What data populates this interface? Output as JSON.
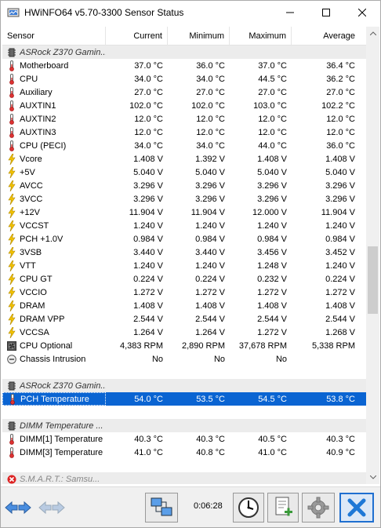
{
  "window": {
    "title": "HWiNFO64 v5.70-3300 Sensor Status"
  },
  "columns": {
    "sensor": "Sensor",
    "current": "Current",
    "minimum": "Minimum",
    "maximum": "Maximum",
    "average": "Average"
  },
  "rows": [
    {
      "type": "group",
      "icon": "chip-icon",
      "name": "ASRock Z370 Gamin..."
    },
    {
      "icon": "thermometer-icon",
      "name": "Motherboard",
      "current": "37.0 °C",
      "minimum": "36.0 °C",
      "maximum": "37.0 °C",
      "average": "36.4 °C"
    },
    {
      "icon": "thermometer-icon",
      "name": "CPU",
      "current": "34.0 °C",
      "minimum": "34.0 °C",
      "maximum": "44.5 °C",
      "average": "36.2 °C"
    },
    {
      "icon": "thermometer-icon",
      "name": "Auxiliary",
      "current": "27.0 °C",
      "minimum": "27.0 °C",
      "maximum": "27.0 °C",
      "average": "27.0 °C"
    },
    {
      "icon": "thermometer-icon",
      "name": "AUXTIN1",
      "current": "102.0 °C",
      "minimum": "102.0 °C",
      "maximum": "103.0 °C",
      "average": "102.2 °C"
    },
    {
      "icon": "thermometer-icon",
      "name": "AUXTIN2",
      "current": "12.0 °C",
      "minimum": "12.0 °C",
      "maximum": "12.0 °C",
      "average": "12.0 °C"
    },
    {
      "icon": "thermometer-icon",
      "name": "AUXTIN3",
      "current": "12.0 °C",
      "minimum": "12.0 °C",
      "maximum": "12.0 °C",
      "average": "12.0 °C"
    },
    {
      "icon": "thermometer-icon",
      "name": "CPU (PECI)",
      "current": "34.0 °C",
      "minimum": "34.0 °C",
      "maximum": "44.0 °C",
      "average": "36.0 °C"
    },
    {
      "icon": "voltage-icon",
      "name": "Vcore",
      "current": "1.408 V",
      "minimum": "1.392 V",
      "maximum": "1.408 V",
      "average": "1.408 V"
    },
    {
      "icon": "voltage-icon",
      "name": "+5V",
      "current": "5.040 V",
      "minimum": "5.040 V",
      "maximum": "5.040 V",
      "average": "5.040 V"
    },
    {
      "icon": "voltage-icon",
      "name": "AVCC",
      "current": "3.296 V",
      "minimum": "3.296 V",
      "maximum": "3.296 V",
      "average": "3.296 V"
    },
    {
      "icon": "voltage-icon",
      "name": "3VCC",
      "current": "3.296 V",
      "minimum": "3.296 V",
      "maximum": "3.296 V",
      "average": "3.296 V"
    },
    {
      "icon": "voltage-icon",
      "name": "+12V",
      "current": "11.904 V",
      "minimum": "11.904 V",
      "maximum": "12.000 V",
      "average": "11.904 V"
    },
    {
      "icon": "voltage-icon",
      "name": "VCCST",
      "current": "1.240 V",
      "minimum": "1.240 V",
      "maximum": "1.240 V",
      "average": "1.240 V"
    },
    {
      "icon": "voltage-icon",
      "name": "PCH +1.0V",
      "current": "0.984 V",
      "minimum": "0.984 V",
      "maximum": "0.984 V",
      "average": "0.984 V"
    },
    {
      "icon": "voltage-icon",
      "name": "3VSB",
      "current": "3.440 V",
      "minimum": "3.440 V",
      "maximum": "3.456 V",
      "average": "3.452 V"
    },
    {
      "icon": "voltage-icon",
      "name": "VTT",
      "current": "1.240 V",
      "minimum": "1.240 V",
      "maximum": "1.248 V",
      "average": "1.240 V"
    },
    {
      "icon": "voltage-icon",
      "name": "CPU GT",
      "current": "0.224 V",
      "minimum": "0.224 V",
      "maximum": "0.232 V",
      "average": "0.224 V"
    },
    {
      "icon": "voltage-icon",
      "name": "VCCIO",
      "current": "1.272 V",
      "minimum": "1.272 V",
      "maximum": "1.272 V",
      "average": "1.272 V"
    },
    {
      "icon": "voltage-icon",
      "name": "DRAM",
      "current": "1.408 V",
      "minimum": "1.408 V",
      "maximum": "1.408 V",
      "average": "1.408 V"
    },
    {
      "icon": "voltage-icon",
      "name": "DRAM VPP",
      "current": "2.544 V",
      "minimum": "2.544 V",
      "maximum": "2.544 V",
      "average": "2.544 V"
    },
    {
      "icon": "voltage-icon",
      "name": "VCCSA",
      "current": "1.264 V",
      "minimum": "1.264 V",
      "maximum": "1.272 V",
      "average": "1.268 V"
    },
    {
      "icon": "fan-icon",
      "name": "CPU Optional",
      "current": "4,383 RPM",
      "minimum": "2,890 RPM",
      "maximum": "37,678 RPM",
      "average": "5,338 RPM"
    },
    {
      "icon": "intrusion-icon",
      "name": "Chassis Intrusion",
      "current": "No",
      "minimum": "No",
      "maximum": "No",
      "average": ""
    },
    {
      "type": "blank"
    },
    {
      "type": "group",
      "icon": "chip-icon",
      "name": "ASRock Z370 Gamin..."
    },
    {
      "icon": "thermometer-icon",
      "name": "PCH Temperature",
      "current": "54.0 °C",
      "minimum": "53.5 °C",
      "maximum": "54.5 °C",
      "average": "53.8 °C",
      "selected": true
    },
    {
      "type": "blank"
    },
    {
      "type": "group",
      "icon": "chip-icon",
      "name": "DIMM Temperature ..."
    },
    {
      "icon": "thermometer-icon",
      "name": "DIMM[1] Temperature",
      "current": "40.3 °C",
      "minimum": "40.3 °C",
      "maximum": "40.5 °C",
      "average": "40.3 °C"
    },
    {
      "icon": "thermometer-icon",
      "name": "DIMM[3] Temperature",
      "current": "41.0 °C",
      "minimum": "40.8 °C",
      "maximum": "41.0 °C",
      "average": "40.9 °C"
    },
    {
      "type": "blank"
    },
    {
      "type": "group",
      "icon": "error-icon",
      "name": "S.M.A.R.T.: Samsu...",
      "gray": true
    }
  ],
  "toolbar": {
    "elapsed_time": "0:06:28"
  }
}
